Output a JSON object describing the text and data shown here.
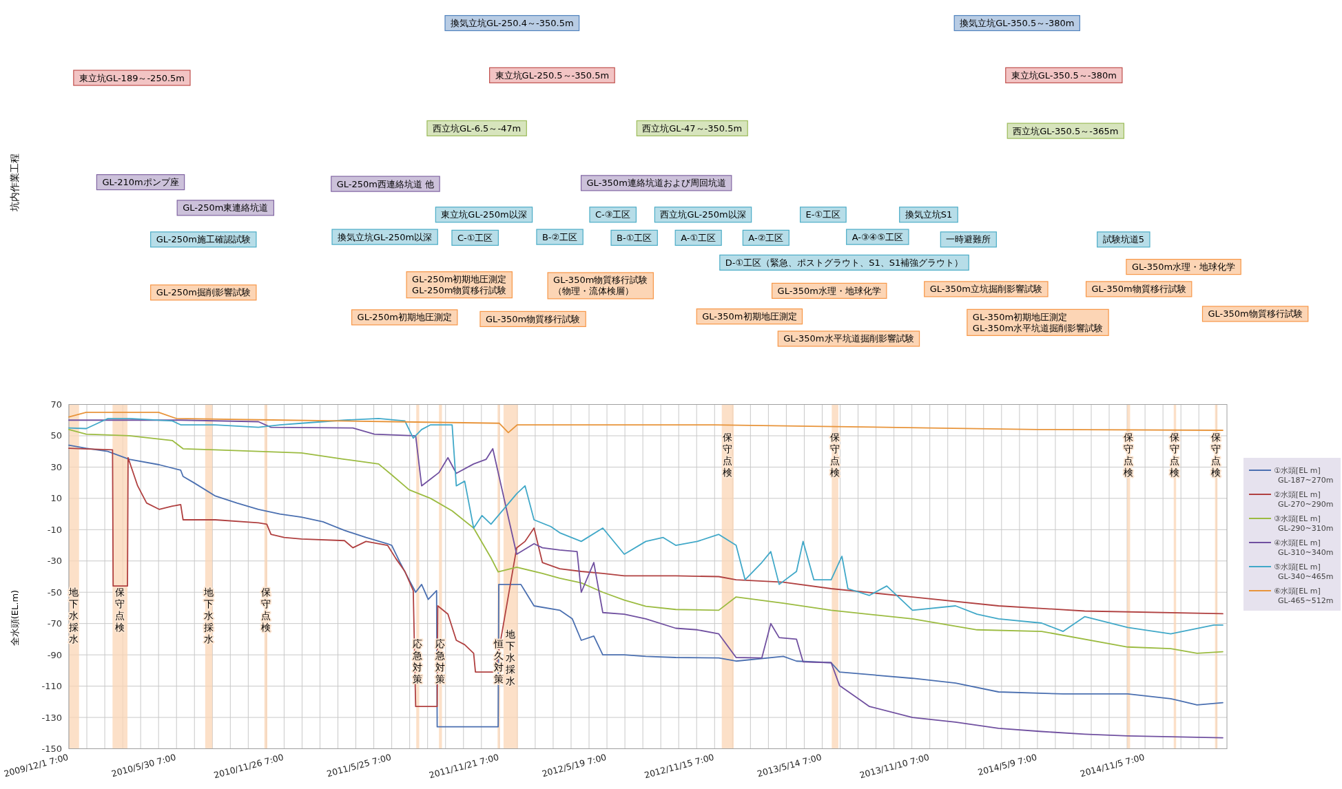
{
  "chart_data": [
    {
      "type": "other",
      "ylabel": "坑内作業工程",
      "annotations": [
        "換気立坑GL-250.4～-350.5m",
        "換気立坑GL-350.5～-380m",
        "東立坑GL-189～-250.5m",
        "東立坑GL-250.5～-350.5m",
        "東立坑GL-350.5～-380m",
        "西立坑GL-6.5～-47m",
        "西立坑GL-47～-350.5m",
        "西立坑GL-350.5～-365m",
        "GL-210mポンプ座",
        "GL-250m西連絡坑道 他",
        "GL-350m連絡坑道および周回坑道",
        "GL-250m東連絡坑道",
        "東立坑GL-250m以深",
        "C-③工区",
        "西立坑GL-250m以深",
        "E-①工区",
        "換気立坑S1",
        "GL-250m施工確認試験",
        "換気立坑GL-250m以深",
        "C-①工区",
        "B-②工区",
        "B-①工区",
        "A-①工区",
        "A-②工区",
        "A-③④⑤工区",
        "一時避難所",
        "試験坑道5",
        "D-①工区（緊急、ポストグラウト、S1、S1補強グラウト）",
        "GL-350m水理・地球化学",
        "GL-250m掘削影響試験",
        "GL-250m初期地圧測定\nGL-250m物質移行試験",
        "GL-350m物質移行試験（物理・流体検層）",
        "GL-350m水理・地球化学",
        "GL-350m立坑掘削影響試験",
        "GL-350m物質移行試験",
        "GL-250m初期地圧測定",
        "GL-350m物質移行試験",
        "GL-350m初期地圧測定",
        "GL-350m初期地圧測定\nGL-350m水平坑道掘削影響試験",
        "GL-350m物質移行試験",
        "GL-350m水平坑道掘削影響試験"
      ]
    },
    {
      "type": "line",
      "ylabel": "全水頭(EL.m)",
      "xlim": [
        "2009-12-01",
        "2015-03-22"
      ],
      "ylim": [
        -150,
        70
      ],
      "yticks": [
        -150,
        -130,
        -110,
        -90,
        -70,
        -50,
        -30,
        -10,
        10,
        30,
        50,
        70
      ],
      "xticks": [
        {
          "value": "2009-12-01",
          "label": "2009/12/1 7:00"
        },
        {
          "value": "2009-12-31",
          "label": null
        },
        {
          "value": "2010-01-30",
          "label": null
        },
        {
          "value": "2010-03-01",
          "label": null
        },
        {
          "value": "2010-03-31",
          "label": null
        },
        {
          "value": "2010-04-30",
          "label": null
        },
        {
          "value": "2010-05-30",
          "label": "2010/5/30 7:00"
        },
        {
          "value": "2010-06-29",
          "label": null
        },
        {
          "value": "2010-07-29",
          "label": null
        },
        {
          "value": "2010-08-28",
          "label": null
        },
        {
          "value": "2010-09-27",
          "label": null
        },
        {
          "value": "2010-10-27",
          "label": null
        },
        {
          "value": "2010-11-26",
          "label": "2010/11/26 7:00"
        },
        {
          "value": "2010-12-26",
          "label": null
        },
        {
          "value": "2011-01-25",
          "label": null
        },
        {
          "value": "2011-02-24",
          "label": null
        },
        {
          "value": "2011-03-26",
          "label": null
        },
        {
          "value": "2011-04-25",
          "label": null
        },
        {
          "value": "2011-05-25",
          "label": "2011/5/25 7:00"
        },
        {
          "value": "2011-06-24",
          "label": null
        },
        {
          "value": "2011-07-24",
          "label": null
        },
        {
          "value": "2011-08-23",
          "label": null
        },
        {
          "value": "2011-09-22",
          "label": null
        },
        {
          "value": "2011-10-22",
          "label": null
        },
        {
          "value": "2011-11-21",
          "label": "2011/11/21 7:00"
        },
        {
          "value": "2011-12-21",
          "label": null
        },
        {
          "value": "2012-01-20",
          "label": null
        },
        {
          "value": "2012-02-19",
          "label": null
        },
        {
          "value": "2012-03-20",
          "label": null
        },
        {
          "value": "2012-04-19",
          "label": null
        },
        {
          "value": "2012-05-19",
          "label": "2012/5/19 7:00"
        },
        {
          "value": "2012-06-18",
          "label": null
        },
        {
          "value": "2012-07-18",
          "label": null
        },
        {
          "value": "2012-08-17",
          "label": null
        },
        {
          "value": "2012-09-16",
          "label": null
        },
        {
          "value": "2012-10-16",
          "label": null
        },
        {
          "value": "2012-11-15",
          "label": "2012/11/15 7:00"
        },
        {
          "value": "2012-12-15",
          "label": null
        },
        {
          "value": "2013-01-14",
          "label": null
        },
        {
          "value": "2013-02-13",
          "label": null
        },
        {
          "value": "2013-03-15",
          "label": null
        },
        {
          "value": "2013-04-14",
          "label": null
        },
        {
          "value": "2013-05-14",
          "label": "2013/5/14 7:00"
        },
        {
          "value": "2013-06-13",
          "label": null
        },
        {
          "value": "2013-07-13",
          "label": null
        },
        {
          "value": "2013-08-12",
          "label": null
        },
        {
          "value": "2013-09-11",
          "label": null
        },
        {
          "value": "2013-10-11",
          "label": null
        },
        {
          "value": "2013-11-10",
          "label": "2013/11/10 7:00"
        },
        {
          "value": "2013-12-10",
          "label": null
        },
        {
          "value": "2014-01-09",
          "label": null
        },
        {
          "value": "2014-02-08",
          "label": null
        },
        {
          "value": "2014-03-10",
          "label": null
        },
        {
          "value": "2014-04-09",
          "label": null
        },
        {
          "value": "2014-05-09",
          "label": "2014/5/9 7:00"
        },
        {
          "value": "2014-06-08",
          "label": null
        },
        {
          "value": "2014-07-08",
          "label": null
        },
        {
          "value": "2014-08-07",
          "label": null
        },
        {
          "value": "2014-09-06",
          "label": null
        },
        {
          "value": "2014-10-06",
          "label": null
        },
        {
          "value": "2014-11-05",
          "label": "2014/11/5 7:00"
        },
        {
          "value": "2014-12-05",
          "label": null
        },
        {
          "value": "2015-01-04",
          "label": null
        },
        {
          "value": "2015-02-03",
          "label": null
        },
        {
          "value": "2015-03-05",
          "label": null
        }
      ],
      "grid": true,
      "legend": "right",
      "bands": [
        {
          "axis": "x",
          "from": "2009-12-01",
          "to": "2009-12-18",
          "label": "地下水採水",
          "color": "#fbd5b5"
        },
        {
          "axis": "x",
          "from": "2010-02-12",
          "to": "2010-03-09",
          "label": "保守点検",
          "color": "#fbd5b5"
        },
        {
          "axis": "x",
          "from": "2010-07-17",
          "to": "2010-07-29",
          "label": "地下水採水",
          "color": "#fbd5b5"
        },
        {
          "axis": "x",
          "from": "2010-10-24",
          "to": "2010-10-29",
          "label": "保守点検",
          "color": "#fbd5b5"
        },
        {
          "axis": "x",
          "from": "2011-07-05",
          "to": "2011-07-10",
          "label": "応急対策",
          "color": "#fbd5b5"
        },
        {
          "axis": "x",
          "from": "2011-08-12",
          "to": "2011-08-17",
          "label": "応急対策",
          "color": "#fbd5b5"
        },
        {
          "axis": "x",
          "from": "2011-11-18",
          "to": "2011-11-22",
          "label": "恒久対策",
          "color": "#fbd5b5"
        },
        {
          "axis": "x",
          "from": "2011-11-28",
          "to": "2011-12-22",
          "label": "地下水採水",
          "color": "#fbd5b5"
        },
        {
          "axis": "x",
          "from": "2012-11-27",
          "to": "2012-12-17",
          "label": "保守点検",
          "color": "#fbd5b5"
        },
        {
          "axis": "x",
          "from": "2013-05-30",
          "to": "2013-06-10",
          "label": "保守点検",
          "color": "#fbd5b5"
        },
        {
          "axis": "x",
          "from": "2014-10-06",
          "to": "2014-10-11",
          "label": "保守点検",
          "color": "#fbd5b5"
        },
        {
          "axis": "x",
          "from": "2014-12-23",
          "to": "2014-12-27",
          "label": "保守点検",
          "color": "#fbd5b5"
        },
        {
          "axis": "x",
          "from": "2015-03-02",
          "to": "2015-03-06",
          "label": "保守点検",
          "color": "#fbd5b5"
        }
      ],
      "series": [
        {
          "name": "①水頭[EL m]\nGL-187~270m",
          "color": "#4a6fb0",
          "x": [
            "2009-12-01",
            "2009-12-30",
            "2010-02-04",
            "2010-03-12",
            "2010-05-01",
            "2010-06-06",
            "2010-06-10",
            "2010-06-28",
            "2010-08-03",
            "2010-09-08",
            "2010-10-14",
            "2010-11-19",
            "2010-12-25",
            "2011-01-30",
            "2011-03-07",
            "2011-04-12",
            "2011-05-18",
            "2011-05-25",
            "2011-06-08",
            "2011-06-23",
            "2011-07-04",
            "2011-07-14",
            "2011-07-25",
            "2011-08-08",
            "2011-08-09",
            "2011-11-19",
            "2011-11-20",
            "2011-12-27",
            "2012-01-18",
            "2012-03-01",
            "2012-03-22",
            "2012-04-06",
            "2012-04-27",
            "2012-05-12",
            "2012-06-17",
            "2012-07-23",
            "2012-09-11",
            "2012-11-22",
            "2012-12-21",
            "2013-03-10",
            "2013-04-01",
            "2013-05-29",
            "2013-06-12",
            "2013-10-12",
            "2013-12-23",
            "2014-03-05",
            "2014-06-21",
            "2014-10-07",
            "2014-12-18",
            "2015-01-31",
            "2015-03-15"
          ],
          "values": [
            44,
            42,
            40,
            35,
            31.5,
            28,
            24,
            20,
            11.5,
            7,
            3,
            0,
            -2,
            -5,
            -10.5,
            -15,
            -19,
            -20,
            -31,
            -42,
            -50,
            -45,
            -54.6,
            -49,
            -136,
            -136,
            -45,
            -45,
            -58.7,
            -61.5,
            -67,
            -80.7,
            -78,
            -90,
            -90,
            -91,
            -91.7,
            -92,
            -94,
            -91,
            -94,
            -95,
            -101,
            -105,
            -108,
            -113.7,
            -115,
            -115,
            -118,
            -122,
            -120.6
          ]
        },
        {
          "name": "②水頭[EL m]\nGL-270~290m",
          "color": "#b04040",
          "x": [
            "2009-12-01",
            "2010-02-12",
            "2010-02-13",
            "2010-03-09",
            "2010-03-10",
            "2010-03-26",
            "2010-04-10",
            "2010-05-01",
            "2010-05-23",
            "2010-06-06",
            "2010-06-10",
            "2010-08-03",
            "2010-10-14",
            "2010-10-28",
            "2010-11-04",
            "2010-11-26",
            "2010-12-25",
            "2011-03-07",
            "2011-03-21",
            "2011-04-12",
            "2011-05-18",
            "2011-06-01",
            "2011-06-16",
            "2011-06-30",
            "2011-07-04",
            "2011-08-09",
            "2011-08-10",
            "2011-08-27",
            "2011-09-10",
            "2011-09-24",
            "2011-10-09",
            "2011-10-12",
            "2011-11-14",
            "2011-12-20",
            "2012-01-03",
            "2012-01-18",
            "2012-02-01",
            "2012-03-01",
            "2012-04-06",
            "2012-05-12",
            "2012-06-17",
            "2012-09-11",
            "2012-11-22",
            "2012-12-21",
            "2013-03-10",
            "2013-05-29",
            "2013-10-12",
            "2014-03-05",
            "2014-07-27",
            "2015-03-15"
          ],
          "values": [
            42,
            41,
            -46,
            -46,
            36,
            18,
            7,
            3,
            5,
            6,
            -3.7,
            -3.7,
            -5.6,
            -6.5,
            -13,
            -15,
            -16,
            -17,
            -21.6,
            -17.5,
            -20,
            -28.5,
            -36.7,
            -49,
            -123,
            -123,
            -58.7,
            -64,
            -80.7,
            -83.5,
            -89,
            -101,
            -101,
            -21.6,
            -17.5,
            -9,
            -31,
            -35,
            -36.7,
            -38,
            -39.5,
            -39.5,
            -40,
            -42,
            -43.6,
            -47.7,
            -53,
            -58.7,
            -62,
            -63.7
          ]
        },
        {
          "name": "③水頭[EL m]\nGL-290~310m",
          "color": "#9bbb40",
          "x": [
            "2009-12-01",
            "2009-12-30",
            "2010-03-12",
            "2010-05-23",
            "2010-06-10",
            "2010-08-03",
            "2010-10-14",
            "2010-12-25",
            "2011-03-07",
            "2011-05-03",
            "2011-05-25",
            "2011-06-23",
            "2011-07-29",
            "2011-09-03",
            "2011-10-09",
            "2011-11-07",
            "2011-11-19",
            "2011-12-20",
            "2012-02-01",
            "2012-03-01",
            "2012-04-06",
            "2012-05-12",
            "2012-06-17",
            "2012-07-23",
            "2012-09-11",
            "2012-11-22",
            "2012-12-21",
            "2013-03-10",
            "2013-05-29",
            "2013-10-12",
            "2014-01-28",
            "2014-05-16",
            "2014-10-07",
            "2014-12-18",
            "2015-01-31",
            "2015-03-15"
          ],
          "values": [
            54,
            51,
            50,
            47,
            41.7,
            41,
            40,
            39,
            35,
            32,
            25,
            15.5,
            10,
            2,
            -9,
            -28,
            -37,
            -34,
            -38,
            -41,
            -44,
            -50,
            -55,
            -59,
            -61,
            -61.5,
            -53,
            -57,
            -61.5,
            -67,
            -74,
            -75,
            -85,
            -86,
            -89,
            -88
          ]
        },
        {
          "name": "④水頭[EL m]\nGL-310~340m",
          "color": "#7050a0",
          "x": [
            "2009-12-01",
            "2010-06-06",
            "2010-10-14",
            "2010-11-04",
            "2011-03-21",
            "2011-04-26",
            "2011-06-30",
            "2011-07-04",
            "2011-07-14",
            "2011-07-29",
            "2011-08-12",
            "2011-08-27",
            "2011-09-10",
            "2011-10-09",
            "2011-10-30",
            "2011-11-10",
            "2011-12-20",
            "2012-01-18",
            "2012-02-01",
            "2012-03-01",
            "2012-03-30",
            "2012-04-06",
            "2012-04-27",
            "2012-05-12",
            "2012-06-17",
            "2012-07-23",
            "2012-09-11",
            "2012-10-17",
            "2012-11-22",
            "2012-12-21",
            "2013-02-02",
            "2013-02-17",
            "2013-03-03",
            "2013-04-01",
            "2013-04-12",
            "2013-05-29",
            "2013-06-12",
            "2013-08-01",
            "2013-10-12",
            "2013-12-23",
            "2014-03-05",
            "2014-05-16",
            "2014-07-27",
            "2014-10-07",
            "2015-03-15"
          ],
          "values": [
            60,
            60,
            59,
            55.4,
            55,
            51,
            50,
            50,
            18,
            22.4,
            26.5,
            36,
            26,
            32,
            35,
            41.7,
            -25.7,
            -19,
            -21.6,
            -23,
            -24,
            -50,
            -31,
            -63,
            -64,
            -67,
            -73,
            -74,
            -76.6,
            -91.7,
            -92,
            -70,
            -79,
            -80,
            -94.5,
            -95,
            -109.6,
            -123,
            -130,
            -133,
            -137,
            -139,
            -140.7,
            -141.8,
            -143
          ]
        },
        {
          "name": "⑤水頭[EL m]\nGL-340~465m",
          "color": "#40a8c8",
          "x": [
            "2009-12-01",
            "2009-12-30",
            "2010-02-04",
            "2010-03-12",
            "2010-05-23",
            "2010-06-06",
            "2010-08-03",
            "2010-10-14",
            "2010-11-19",
            "2010-12-25",
            "2011-03-07",
            "2011-05-03",
            "2011-06-16",
            "2011-06-30",
            "2011-07-14",
            "2011-07-29",
            "2011-09-03",
            "2011-09-10",
            "2011-09-24",
            "2011-10-09",
            "2011-10-23",
            "2011-11-07",
            "2011-12-20",
            "2012-01-03",
            "2012-01-18",
            "2012-02-15",
            "2012-03-01",
            "2012-04-06",
            "2012-05-12",
            "2012-06-17",
            "2012-07-23",
            "2012-08-21",
            "2012-09-11",
            "2012-10-17",
            "2012-11-22",
            "2012-12-21",
            "2013-01-05",
            "2013-02-02",
            "2013-02-17",
            "2013-03-03",
            "2013-04-01",
            "2013-04-12",
            "2013-04-30",
            "2013-05-29",
            "2013-06-16",
            "2013-06-26",
            "2013-08-01",
            "2013-08-30",
            "2013-10-12",
            "2013-12-23",
            "2014-01-28",
            "2014-03-05",
            "2014-05-16",
            "2014-06-21",
            "2014-07-27",
            "2014-10-07",
            "2014-12-18",
            "2015-02-28",
            "2015-03-15"
          ],
          "values": [
            55,
            54.6,
            61,
            61,
            59.5,
            57,
            57,
            55.4,
            57,
            58,
            60,
            61,
            59.5,
            48.5,
            54,
            57,
            57,
            18,
            21,
            -9,
            -1,
            -6.5,
            13,
            18,
            -3.7,
            -8,
            -12,
            -17.5,
            -9,
            -25.7,
            -17.5,
            -15,
            -20,
            -17.5,
            -13,
            -20,
            -42,
            -31,
            -24,
            -45,
            -36.7,
            -17.5,
            -42,
            -42,
            -27,
            -47.7,
            -52,
            -46,
            -61.5,
            -58.7,
            -64,
            -67,
            -69.7,
            -75,
            -65.6,
            -72.5,
            -76.6,
            -71,
            -71
          ]
        },
        {
          "name": "⑥水頭[EL m]\nGL-465~512m",
          "color": "#e8943a",
          "x": [
            "2009-12-01",
            "2009-12-30",
            "2010-04-30",
            "2010-05-30",
            "2010-11-26",
            "2011-05-25",
            "2011-11-21",
            "2011-12-06",
            "2011-12-21",
            "2012-11-15",
            "2013-05-14",
            "2013-11-10",
            "2014-05-09",
            "2015-03-15"
          ],
          "values": [
            62,
            65,
            65,
            61,
            60,
            59,
            58,
            52,
            57,
            57,
            56,
            55,
            54,
            53.5
          ]
        }
      ]
    }
  ]
}
